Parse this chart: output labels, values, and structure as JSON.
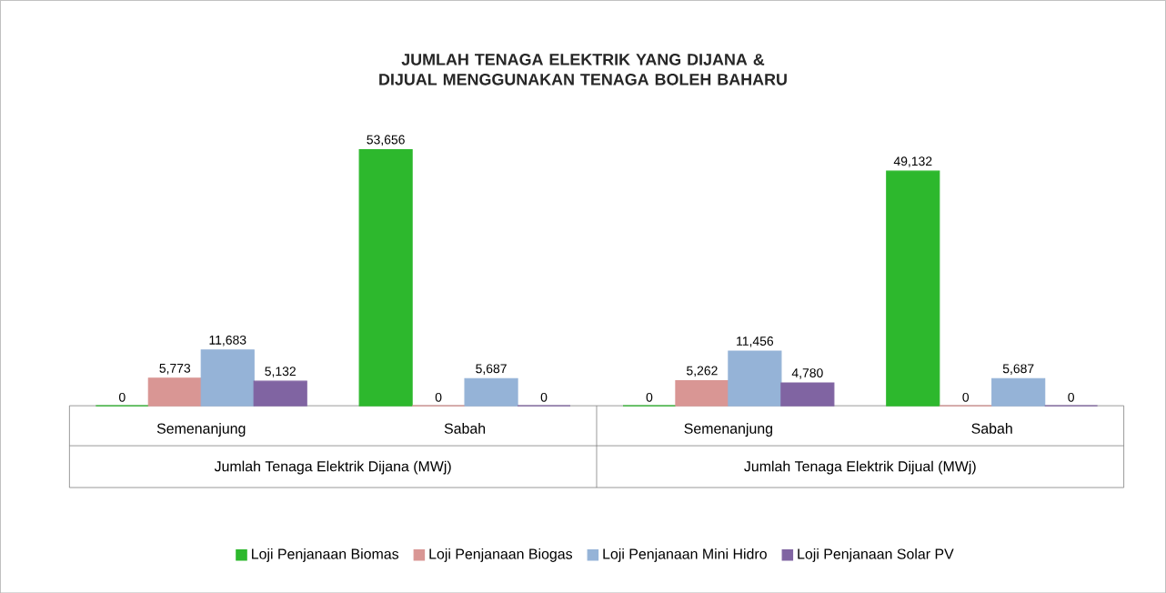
{
  "chart_data": {
    "type": "bar",
    "title": "JUMLAH TENAGA ELEKTRIK YANG DIJANA & DIJUAL MENGGUNAKAN TENAGA BOLEH BAHARU",
    "categories": [
      "Semenanjung",
      "Sabah",
      "Semenanjung",
      "Sabah"
    ],
    "annotations": [
      "Jumlah Tenaga Elektrik Dijana (MWj)",
      "Jumlah Tenaga Elektrik Dijual (MWj)"
    ],
    "series": [
      {
        "name": "Loji Penjanaan Biomas",
        "color": "#2db82d",
        "values": [
          0,
          53656,
          0,
          49132
        ],
        "value_labels": [
          "0",
          "53,656",
          "0",
          "49,132"
        ]
      },
      {
        "name": "Loji Penjanaan Biogas",
        "color": "#d99694",
        "values": [
          5773,
          0,
          5262,
          0
        ],
        "value_labels": [
          "5,773",
          "0",
          "5,262",
          "0"
        ]
      },
      {
        "name": "Loji Penjanaan Mini Hidro",
        "color": "#95b3d7",
        "values": [
          11683,
          5687,
          11456,
          5687
        ],
        "value_labels": [
          "11,683",
          "5,687",
          "11,456",
          "5,687"
        ]
      },
      {
        "name": "Loji Penjanaan Solar PV",
        "color": "#8064a2",
        "values": [
          5132,
          0,
          4780,
          0
        ],
        "value_labels": [
          "5,132",
          "0",
          "4,780",
          "0"
        ]
      }
    ],
    "legend": "bottom"
  }
}
